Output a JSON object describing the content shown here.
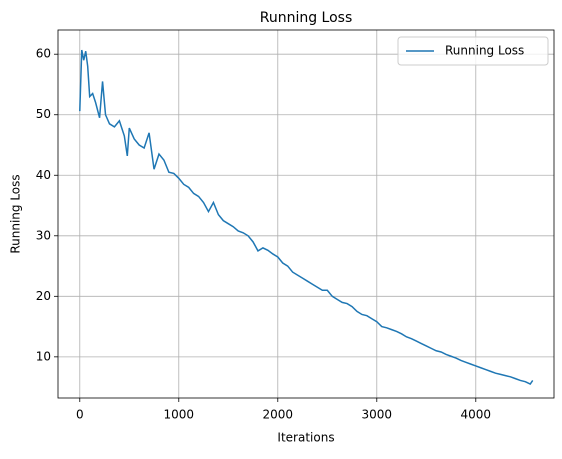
{
  "chart_data": {
    "type": "line",
    "title": "Running Loss",
    "x_label": "Iterations",
    "y_label": "Running Loss",
    "x": [
      0,
      20,
      40,
      60,
      80,
      100,
      130,
      160,
      200,
      230,
      260,
      300,
      350,
      400,
      450,
      480,
      500,
      550,
      600,
      650,
      700,
      750,
      800,
      850,
      900,
      950,
      1000,
      1050,
      1100,
      1150,
      1200,
      1250,
      1300,
      1350,
      1400,
      1450,
      1500,
      1550,
      1600,
      1650,
      1700,
      1750,
      1800,
      1850,
      1900,
      1950,
      2000,
      2050,
      2100,
      2150,
      2200,
      2250,
      2300,
      2350,
      2400,
      2450,
      2500,
      2550,
      2600,
      2650,
      2700,
      2750,
      2800,
      2850,
      2900,
      2950,
      3000,
      3050,
      3100,
      3150,
      3200,
      3250,
      3300,
      3350,
      3400,
      3450,
      3500,
      3550,
      3600,
      3650,
      3700,
      3750,
      3800,
      3850,
      3900,
      3950,
      4000,
      4050,
      4100,
      4150,
      4200,
      4250,
      4300,
      4350,
      4400,
      4450,
      4500,
      4550,
      4575
    ],
    "series": [
      {
        "name": "Running Loss",
        "color": "#1f77b4",
        "values": [
          50.6,
          60.7,
          59,
          60.5,
          58,
          53,
          53.5,
          52,
          49.5,
          55.5,
          50,
          48.5,
          48,
          49,
          46.5,
          43.2,
          47.8,
          46,
          45,
          44.5,
          47,
          41,
          43.5,
          42.5,
          40.5,
          40.3,
          39.5,
          38.5,
          38,
          37,
          36.5,
          35.5,
          34,
          35.5,
          33.5,
          32.5,
          32,
          31.5,
          30.8,
          30.5,
          30,
          29,
          27.5,
          28,
          27.6,
          27,
          26.5,
          25.5,
          25,
          24,
          23.5,
          23,
          22.5,
          22,
          21.5,
          21,
          21,
          20,
          19.5,
          19,
          18.8,
          18.3,
          17.5,
          17,
          16.8,
          16.3,
          15.8,
          15,
          14.8,
          14.5,
          14.2,
          13.8,
          13.3,
          13,
          12.6,
          12.2,
          11.8,
          11.4,
          11,
          10.8,
          10.4,
          10.1,
          9.8,
          9.4,
          9.1,
          8.8,
          8.5,
          8.2,
          7.9,
          7.6,
          7.3,
          7.1,
          6.9,
          6.7,
          6.4,
          6.1,
          5.9,
          5.5,
          6.1
        ]
      }
    ],
    "xlim": [
      -220,
      4790
    ],
    "ylim": [
      3.2,
      64
    ],
    "xticks": [
      0,
      1000,
      2000,
      3000,
      4000
    ],
    "yticks": [
      10,
      20,
      30,
      40,
      50,
      60
    ],
    "grid": true,
    "legend": "upper right"
  }
}
